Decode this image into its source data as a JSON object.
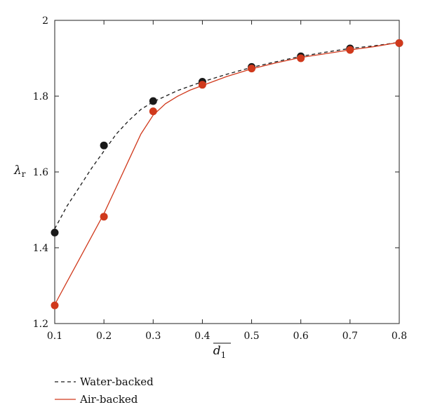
{
  "chart_data": {
    "type": "line",
    "xlabel": "d",
    "xlabel_subscript": "1",
    "ylabel": "λ",
    "ylabel_subscript": "r",
    "xlim": [
      0.1,
      0.8
    ],
    "ylim": [
      1.2,
      2.0
    ],
    "x_ticks": [
      "0.1",
      "0.2",
      "0.3",
      "0.4",
      "0.5",
      "0.6",
      "0.7",
      "0.8"
    ],
    "y_ticks": [
      "1.2",
      "1.4",
      "1.6",
      "1.8",
      "2"
    ],
    "grid": false,
    "legend_position": "bottom-left",
    "series": [
      {
        "name": "Water-backed",
        "color": "#1a1a1a",
        "line_style": "dashed",
        "points": {
          "x": [
            0.1,
            0.2,
            0.3,
            0.4,
            0.5,
            0.6,
            0.7,
            0.8
          ],
          "y": [
            1.44,
            1.67,
            1.787,
            1.838,
            1.877,
            1.905,
            1.926,
            1.94
          ]
        },
        "curve": {
          "x": [
            0.1,
            0.125,
            0.15,
            0.175,
            0.2,
            0.225,
            0.25,
            0.275,
            0.3,
            0.35,
            0.4,
            0.45,
            0.5,
            0.55,
            0.6,
            0.65,
            0.7,
            0.75,
            0.8
          ],
          "y": [
            1.45,
            1.51,
            1.56,
            1.61,
            1.655,
            1.7,
            1.735,
            1.765,
            1.785,
            1.815,
            1.838,
            1.858,
            1.876,
            1.891,
            1.905,
            1.916,
            1.926,
            1.933,
            1.942
          ]
        }
      },
      {
        "name": "Air-backed",
        "color": "#d0391c",
        "line_style": "solid",
        "points": {
          "x": [
            0.1,
            0.2,
            0.3,
            0.4,
            0.5,
            0.6,
            0.7,
            0.8
          ],
          "y": [
            1.248,
            1.482,
            1.76,
            1.83,
            1.873,
            1.9,
            1.922,
            1.94
          ]
        },
        "curve": {
          "x": [
            0.1,
            0.125,
            0.15,
            0.175,
            0.2,
            0.225,
            0.25,
            0.275,
            0.3,
            0.325,
            0.35,
            0.375,
            0.4,
            0.45,
            0.5,
            0.55,
            0.6,
            0.65,
            0.7,
            0.75,
            0.8
          ],
          "y": [
            1.25,
            1.31,
            1.37,
            1.43,
            1.49,
            1.56,
            1.63,
            1.7,
            1.75,
            1.78,
            1.8,
            1.816,
            1.828,
            1.852,
            1.872,
            1.888,
            1.902,
            1.912,
            1.922,
            1.931,
            1.942
          ]
        }
      }
    ]
  }
}
